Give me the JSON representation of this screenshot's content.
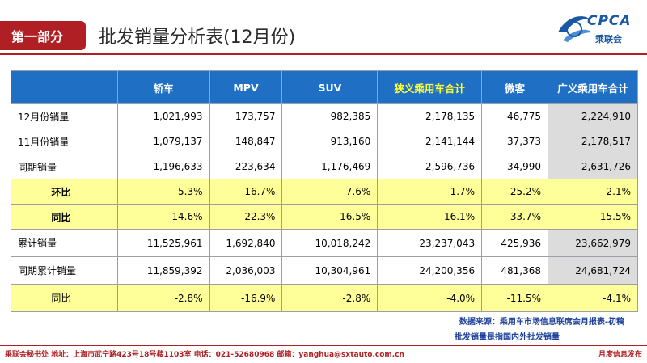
{
  "header": {
    "section": "第一部分",
    "title": "批发销量分析表(12月份)",
    "logo_text": "CPCA",
    "logo_sub": "乘联会"
  },
  "table": {
    "columns": [
      "",
      "轿车",
      "MPV",
      "SUV",
      "狭义乘用车合计",
      "微客",
      "广义乘用车合计"
    ],
    "rows": [
      {
        "label": "12月份销量",
        "values": [
          "1,021,993",
          "173,757",
          "982,385",
          "2,178,135",
          "46,775",
          "2,224,910"
        ]
      },
      {
        "label": "11月份销量",
        "values": [
          "1,079,137",
          "148,847",
          "913,160",
          "2,141,144",
          "37,373",
          "2,178,517"
        ]
      },
      {
        "label": "同期销量",
        "values": [
          "1,196,633",
          "223,634",
          "1,176,469",
          "2,596,736",
          "34,990",
          "2,631,726"
        ]
      },
      {
        "label": "环比",
        "values": [
          "-5.3%",
          "16.7%",
          "7.6%",
          "1.7%",
          "25.2%",
          "2.1%"
        ]
      },
      {
        "label": "同比",
        "values": [
          "-14.6%",
          "-22.3%",
          "-16.5%",
          "-16.1%",
          "33.7%",
          "-15.5%"
        ]
      },
      {
        "label": "累计销量",
        "values": [
          "11,525,961",
          "1,692,840",
          "10,018,242",
          "23,237,043",
          "425,936",
          "23,662,979"
        ]
      },
      {
        "label": "同期累计销量",
        "values": [
          "11,859,392",
          "2,036,003",
          "10,304,961",
          "24,200,356",
          "481,368",
          "24,681,724"
        ]
      },
      {
        "label": "同比",
        "values": [
          "-2.8%",
          "-16.9%",
          "-2.8%",
          "-4.0%",
          "-11.5%",
          "-4.1%"
        ]
      }
    ]
  },
  "notes": {
    "source": "数据来源：乘用车市场信息联席会月报表-初稿",
    "definition": "批发销量是指国内外批发销量"
  },
  "footer": {
    "left": "乘联会秘书处   地址：上海市武宁路423号18号楼1103室  电话：021-52680968   邮箱：yanghua@sxtauto.com.cn",
    "right": "月度信息发布"
  },
  "colors": {
    "brand_red": "#b01f24",
    "header_blue": "#1f6fc5",
    "highlight_yellow": "#ffff99",
    "logo_blue": "#1b58a4"
  }
}
